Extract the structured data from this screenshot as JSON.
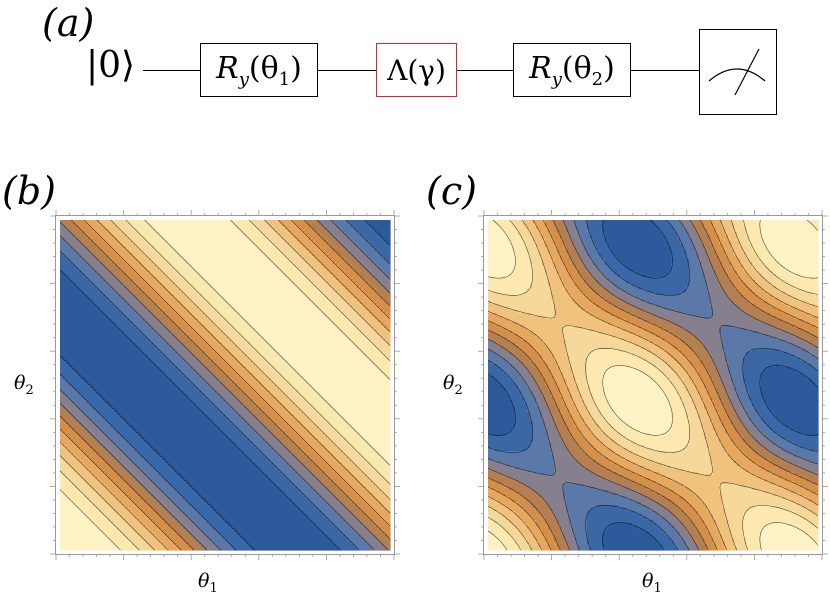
{
  "panels": {
    "a": {
      "label": "(a)"
    },
    "b": {
      "label": "(b)"
    },
    "c": {
      "label": "(c)"
    }
  },
  "circuit": {
    "input_state": "|0⟩",
    "gate1": {
      "symbol": "R",
      "sub": "y",
      "arg": "(θ",
      "arg_sub": "1",
      "close": ")"
    },
    "channel": {
      "text": "Λ(γ)",
      "border_color": "#d62728"
    },
    "gate2": {
      "symbol": "R",
      "sub": "y",
      "arg": "(θ",
      "arg_sub": "2",
      "close": ")"
    },
    "meter": {
      "icon": "measurement-meter-icon"
    }
  },
  "plot_b": {
    "xlabel": {
      "sym": "θ",
      "sub": "1"
    },
    "ylabel": {
      "sym": "θ",
      "sub": "2"
    }
  },
  "plot_c": {
    "xlabel": {
      "sym": "θ",
      "sub": "1"
    },
    "ylabel": {
      "sym": "θ",
      "sub": "2"
    }
  },
  "colormap": [
    "#2c5a9a",
    "#3a68a6",
    "#5a78a8",
    "#857f8e",
    "#b48052",
    "#d4904a",
    "#e6a85e",
    "#f0c27e",
    "#f6d89a",
    "#fde8b0",
    "#fff3c6"
  ],
  "contour_line_color": "#000000"
}
